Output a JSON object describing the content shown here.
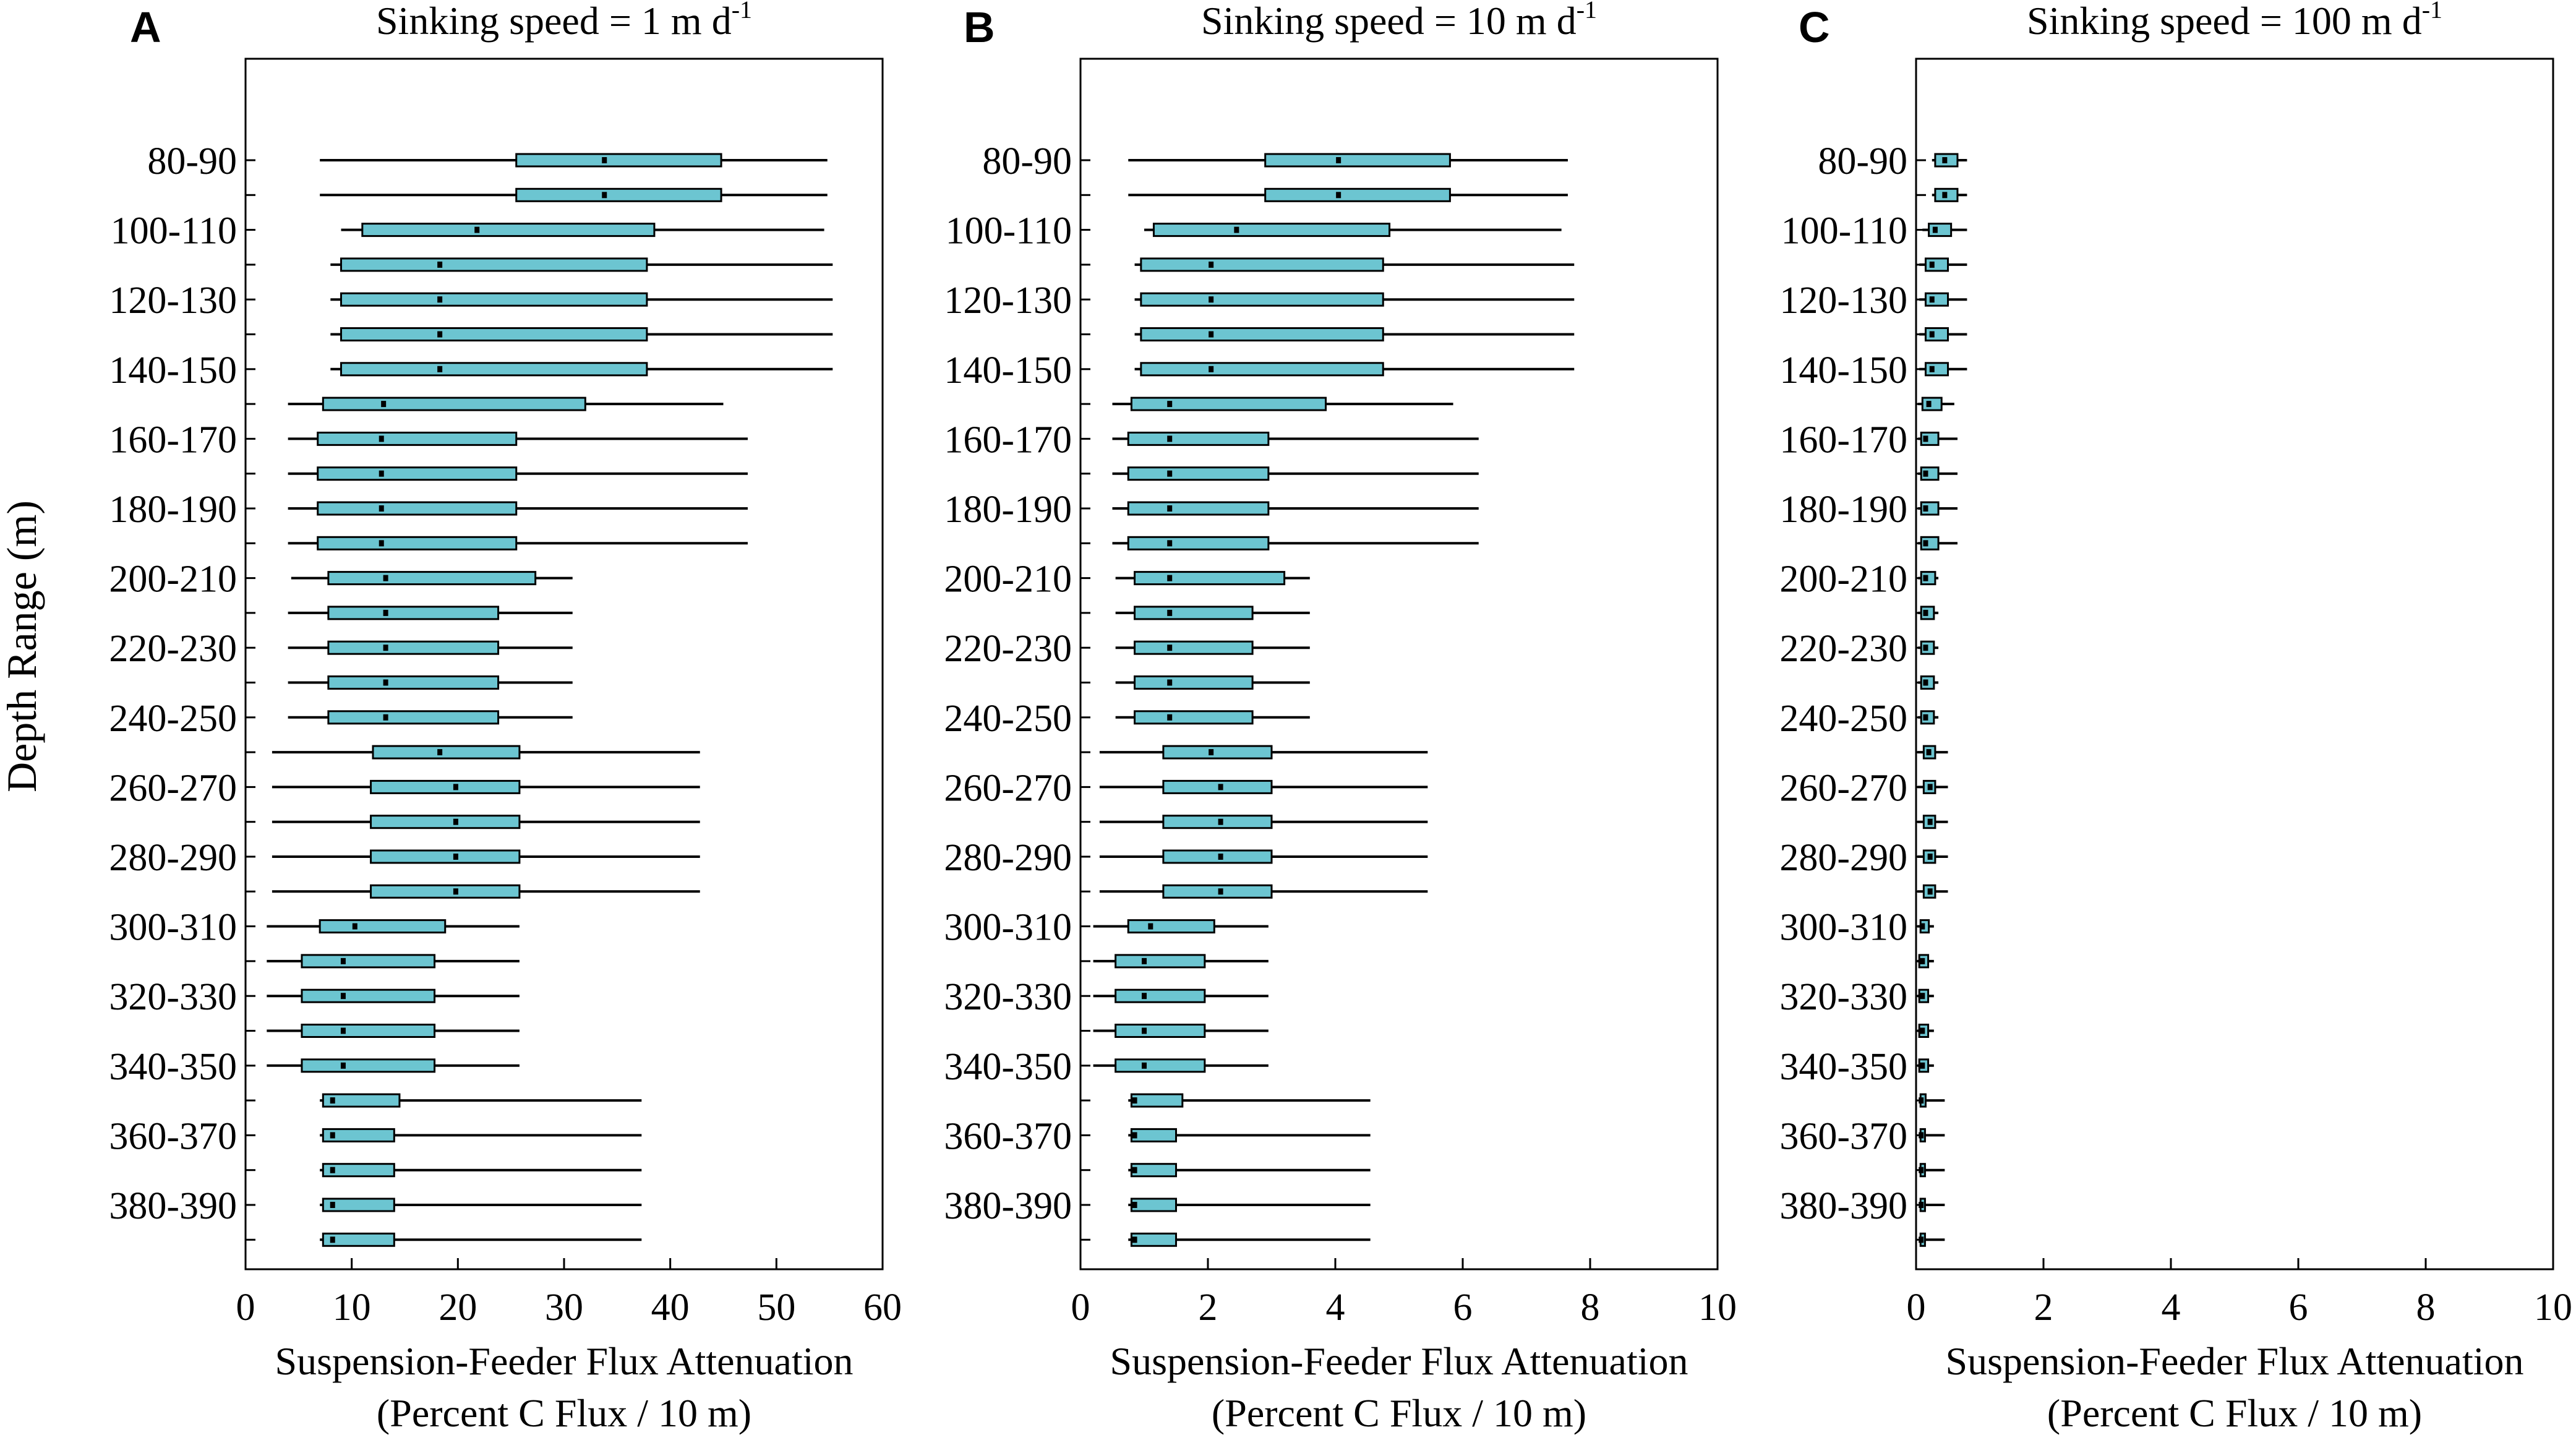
{
  "figure": {
    "y_axis_label": "Depth Range (m)"
  },
  "chart_data": [
    {
      "type": "boxplot",
      "panel_letter": "A",
      "title_main": "Sinking speed = 1 m d",
      "title_sup": "-1",
      "xlabel_line1": "Suspension-Feeder Flux Attenuation",
      "xlabel_line2": "(Percent C Flux / 10 m)",
      "ylabel": "Depth Range (m)",
      "xlim": [
        0,
        60
      ],
      "xticks": [
        "0",
        "10",
        "20",
        "30",
        "40",
        "50",
        "60"
      ],
      "box_color": "#6cc5d1",
      "categories": [
        "80-90",
        "90-100",
        "100-110",
        "110-120",
        "120-130",
        "130-140",
        "140-150",
        "150-160",
        "160-170",
        "170-180",
        "180-190",
        "190-200",
        "200-210",
        "210-220",
        "220-230",
        "230-240",
        "240-250",
        "250-260",
        "260-270",
        "270-280",
        "280-290",
        "290-300",
        "300-310",
        "310-320",
        "320-330",
        "330-340",
        "340-350",
        "350-360",
        "360-370",
        "370-380",
        "380-390",
        "390-400"
      ],
      "ytick_labels": [
        "80-90",
        "100-110",
        "120-130",
        "140-150",
        "160-170",
        "180-190",
        "200-210",
        "220-230",
        "240-250",
        "260-270",
        "280-290",
        "300-310",
        "320-330",
        "340-350",
        "360-370",
        "380-390"
      ],
      "rows": [
        {
          "min": 7.0,
          "q1": 25.5,
          "median": 33.8,
          "q3": 44.8,
          "max": 54.8
        },
        {
          "min": 7.0,
          "q1": 25.5,
          "median": 33.8,
          "q3": 44.8,
          "max": 54.8
        },
        {
          "min": 9.0,
          "q1": 11.0,
          "median": 21.8,
          "q3": 38.5,
          "max": 54.5
        },
        {
          "min": 8.0,
          "q1": 9.0,
          "median": 18.3,
          "q3": 37.8,
          "max": 55.3
        },
        {
          "min": 8.0,
          "q1": 9.0,
          "median": 18.3,
          "q3": 37.8,
          "max": 55.3
        },
        {
          "min": 8.0,
          "q1": 9.0,
          "median": 18.3,
          "q3": 37.8,
          "max": 55.3
        },
        {
          "min": 8.0,
          "q1": 9.0,
          "median": 18.3,
          "q3": 37.8,
          "max": 55.3
        },
        {
          "min": 4.0,
          "q1": 7.3,
          "median": 13.0,
          "q3": 32.0,
          "max": 45.0
        },
        {
          "min": 4.0,
          "q1": 6.8,
          "median": 12.8,
          "q3": 25.5,
          "max": 47.3
        },
        {
          "min": 4.0,
          "q1": 6.8,
          "median": 12.8,
          "q3": 25.5,
          "max": 47.3
        },
        {
          "min": 4.0,
          "q1": 6.8,
          "median": 12.8,
          "q3": 25.5,
          "max": 47.3
        },
        {
          "min": 4.0,
          "q1": 6.8,
          "median": 12.8,
          "q3": 25.5,
          "max": 47.3
        },
        {
          "min": 4.3,
          "q1": 7.8,
          "median": 13.2,
          "q3": 27.3,
          "max": 30.8
        },
        {
          "min": 4.0,
          "q1": 7.8,
          "median": 13.2,
          "q3": 23.8,
          "max": 30.8
        },
        {
          "min": 4.0,
          "q1": 7.8,
          "median": 13.2,
          "q3": 23.8,
          "max": 30.8
        },
        {
          "min": 4.0,
          "q1": 7.8,
          "median": 13.2,
          "q3": 23.8,
          "max": 30.8
        },
        {
          "min": 4.0,
          "q1": 7.8,
          "median": 13.2,
          "q3": 23.8,
          "max": 30.8
        },
        {
          "min": 2.5,
          "q1": 12.0,
          "median": 18.3,
          "q3": 25.8,
          "max": 42.8
        },
        {
          "min": 2.5,
          "q1": 11.8,
          "median": 19.8,
          "q3": 25.8,
          "max": 42.8
        },
        {
          "min": 2.5,
          "q1": 11.8,
          "median": 19.8,
          "q3": 25.8,
          "max": 42.8
        },
        {
          "min": 2.5,
          "q1": 11.8,
          "median": 19.8,
          "q3": 25.8,
          "max": 42.8
        },
        {
          "min": 2.5,
          "q1": 11.8,
          "median": 19.8,
          "q3": 25.8,
          "max": 42.8
        },
        {
          "min": 2.0,
          "q1": 7.0,
          "median": 10.3,
          "q3": 18.8,
          "max": 25.8
        },
        {
          "min": 2.0,
          "q1": 5.3,
          "median": 9.2,
          "q3": 17.8,
          "max": 25.8
        },
        {
          "min": 2.0,
          "q1": 5.3,
          "median": 9.2,
          "q3": 17.8,
          "max": 25.8
        },
        {
          "min": 2.0,
          "q1": 5.3,
          "median": 9.2,
          "q3": 17.8,
          "max": 25.8
        },
        {
          "min": 2.0,
          "q1": 5.3,
          "median": 9.2,
          "q3": 17.8,
          "max": 25.8
        },
        {
          "min": 7.0,
          "q1": 7.3,
          "median": 8.2,
          "q3": 14.5,
          "max": 37.3
        },
        {
          "min": 7.0,
          "q1": 7.3,
          "median": 8.2,
          "q3": 14.0,
          "max": 37.3
        },
        {
          "min": 7.0,
          "q1": 7.3,
          "median": 8.2,
          "q3": 14.0,
          "max": 37.3
        },
        {
          "min": 7.0,
          "q1": 7.3,
          "median": 8.2,
          "q3": 14.0,
          "max": 37.3
        },
        {
          "min": 7.0,
          "q1": 7.3,
          "median": 8.2,
          "q3": 14.0,
          "max": 37.3
        }
      ]
    },
    {
      "type": "boxplot",
      "panel_letter": "B",
      "title_main": "Sinking speed = 10 m d",
      "title_sup": "-1",
      "xlabel_line1": "Suspension-Feeder Flux Attenuation",
      "xlabel_line2": "(Percent C Flux / 10 m)",
      "xlim": [
        0,
        10
      ],
      "xticks": [
        "0",
        "2",
        "4",
        "6",
        "8",
        "10"
      ],
      "box_color": "#6cc5d1",
      "categories": [
        "80-90",
        "90-100",
        "100-110",
        "110-120",
        "120-130",
        "130-140",
        "140-150",
        "150-160",
        "160-170",
        "170-180",
        "180-190",
        "190-200",
        "200-210",
        "210-220",
        "220-230",
        "230-240",
        "240-250",
        "250-260",
        "260-270",
        "270-280",
        "280-290",
        "290-300",
        "300-310",
        "310-320",
        "320-330",
        "330-340",
        "340-350",
        "350-360",
        "360-370",
        "370-380",
        "380-390",
        "390-400"
      ],
      "ytick_labels": [
        "80-90",
        "100-110",
        "120-130",
        "140-150",
        "160-170",
        "180-190",
        "200-210",
        "220-230",
        "240-250",
        "260-270",
        "280-290",
        "300-310",
        "320-330",
        "340-350",
        "360-370",
        "380-390"
      ],
      "rows": [
        {
          "min": 0.75,
          "q1": 2.9,
          "median": 4.05,
          "q3": 5.8,
          "max": 7.65
        },
        {
          "min": 0.75,
          "q1": 2.9,
          "median": 4.05,
          "q3": 5.8,
          "max": 7.65
        },
        {
          "min": 1.0,
          "q1": 1.15,
          "median": 2.45,
          "q3": 4.85,
          "max": 7.55
        },
        {
          "min": 0.85,
          "q1": 0.95,
          "median": 2.05,
          "q3": 4.75,
          "max": 7.75
        },
        {
          "min": 0.85,
          "q1": 0.95,
          "median": 2.05,
          "q3": 4.75,
          "max": 7.75
        },
        {
          "min": 0.85,
          "q1": 0.95,
          "median": 2.05,
          "q3": 4.75,
          "max": 7.75
        },
        {
          "min": 0.85,
          "q1": 0.95,
          "median": 2.05,
          "q3": 4.75,
          "max": 7.75
        },
        {
          "min": 0.5,
          "q1": 0.8,
          "median": 1.4,
          "q3": 3.85,
          "max": 5.85
        },
        {
          "min": 0.5,
          "q1": 0.75,
          "median": 1.4,
          "q3": 2.95,
          "max": 6.25
        },
        {
          "min": 0.5,
          "q1": 0.75,
          "median": 1.4,
          "q3": 2.95,
          "max": 6.25
        },
        {
          "min": 0.5,
          "q1": 0.75,
          "median": 1.4,
          "q3": 2.95,
          "max": 6.25
        },
        {
          "min": 0.5,
          "q1": 0.75,
          "median": 1.4,
          "q3": 2.95,
          "max": 6.25
        },
        {
          "min": 0.55,
          "q1": 0.85,
          "median": 1.4,
          "q3": 3.2,
          "max": 3.6
        },
        {
          "min": 0.55,
          "q1": 0.85,
          "median": 1.4,
          "q3": 2.7,
          "max": 3.6
        },
        {
          "min": 0.55,
          "q1": 0.85,
          "median": 1.4,
          "q3": 2.7,
          "max": 3.6
        },
        {
          "min": 0.55,
          "q1": 0.85,
          "median": 1.4,
          "q3": 2.7,
          "max": 3.6
        },
        {
          "min": 0.55,
          "q1": 0.85,
          "median": 1.4,
          "q3": 2.7,
          "max": 3.6
        },
        {
          "min": 0.3,
          "q1": 1.3,
          "median": 2.05,
          "q3": 3.0,
          "max": 5.45
        },
        {
          "min": 0.3,
          "q1": 1.3,
          "median": 2.2,
          "q3": 3.0,
          "max": 5.45
        },
        {
          "min": 0.3,
          "q1": 1.3,
          "median": 2.2,
          "q3": 3.0,
          "max": 5.45
        },
        {
          "min": 0.3,
          "q1": 1.3,
          "median": 2.2,
          "q3": 3.0,
          "max": 5.45
        },
        {
          "min": 0.3,
          "q1": 1.3,
          "median": 2.2,
          "q3": 3.0,
          "max": 5.45
        },
        {
          "min": 0.2,
          "q1": 0.75,
          "median": 1.1,
          "q3": 2.1,
          "max": 2.95
        },
        {
          "min": 0.2,
          "q1": 0.55,
          "median": 1.0,
          "q3": 1.95,
          "max": 2.95
        },
        {
          "min": 0.2,
          "q1": 0.55,
          "median": 1.0,
          "q3": 1.95,
          "max": 2.95
        },
        {
          "min": 0.2,
          "q1": 0.55,
          "median": 1.0,
          "q3": 1.95,
          "max": 2.95
        },
        {
          "min": 0.2,
          "q1": 0.55,
          "median": 1.0,
          "q3": 1.95,
          "max": 2.95
        },
        {
          "min": 0.75,
          "q1": 0.8,
          "median": 0.85,
          "q3": 1.6,
          "max": 4.55
        },
        {
          "min": 0.75,
          "q1": 0.8,
          "median": 0.85,
          "q3": 1.5,
          "max": 4.55
        },
        {
          "min": 0.75,
          "q1": 0.8,
          "median": 0.85,
          "q3": 1.5,
          "max": 4.55
        },
        {
          "min": 0.75,
          "q1": 0.8,
          "median": 0.85,
          "q3": 1.5,
          "max": 4.55
        },
        {
          "min": 0.75,
          "q1": 0.8,
          "median": 0.85,
          "q3": 1.5,
          "max": 4.55
        }
      ]
    },
    {
      "type": "boxplot",
      "panel_letter": "C",
      "title_main": "Sinking speed = 100 m d",
      "title_sup": "-1",
      "xlabel_line1": "Suspension-Feeder Flux Attenuation",
      "xlabel_line2": "(Percent C Flux / 10 m)",
      "xlim": [
        0,
        10
      ],
      "xticks": [
        "0",
        "2",
        "4",
        "6",
        "8",
        "10"
      ],
      "box_color": "#6cc5d1",
      "categories": [
        "80-90",
        "90-100",
        "100-110",
        "110-120",
        "120-130",
        "130-140",
        "140-150",
        "150-160",
        "160-170",
        "170-180",
        "180-190",
        "190-200",
        "200-210",
        "210-220",
        "220-230",
        "230-240",
        "240-250",
        "250-260",
        "260-270",
        "270-280",
        "280-290",
        "290-300",
        "300-310",
        "310-320",
        "320-330",
        "330-340",
        "340-350",
        "350-360",
        "360-370",
        "370-380",
        "380-390",
        "390-400"
      ],
      "ytick_labels": [
        "80-90",
        "100-110",
        "120-130",
        "140-150",
        "160-170",
        "180-190",
        "200-210",
        "220-230",
        "240-250",
        "260-270",
        "280-290",
        "300-310",
        "320-330",
        "340-350",
        "360-370",
        "380-390"
      ],
      "rows": [
        {
          "min": 0.25,
          "q1": 0.3,
          "median": 0.45,
          "q3": 0.65,
          "max": 0.8
        },
        {
          "min": 0.25,
          "q1": 0.3,
          "median": 0.45,
          "q3": 0.65,
          "max": 0.8
        },
        {
          "min": 0.1,
          "q1": 0.2,
          "median": 0.3,
          "q3": 0.55,
          "max": 0.8
        },
        {
          "min": 0.05,
          "q1": 0.15,
          "median": 0.25,
          "q3": 0.5,
          "max": 0.8
        },
        {
          "min": 0.05,
          "q1": 0.15,
          "median": 0.25,
          "q3": 0.5,
          "max": 0.8
        },
        {
          "min": 0.05,
          "q1": 0.15,
          "median": 0.25,
          "q3": 0.5,
          "max": 0.8
        },
        {
          "min": 0.05,
          "q1": 0.15,
          "median": 0.25,
          "q3": 0.5,
          "max": 0.8
        },
        {
          "min": 0.03,
          "q1": 0.1,
          "median": 0.2,
          "q3": 0.4,
          "max": 0.6
        },
        {
          "min": 0.03,
          "q1": 0.08,
          "median": 0.15,
          "q3": 0.35,
          "max": 0.65
        },
        {
          "min": 0.03,
          "q1": 0.08,
          "median": 0.15,
          "q3": 0.35,
          "max": 0.65
        },
        {
          "min": 0.03,
          "q1": 0.08,
          "median": 0.15,
          "q3": 0.35,
          "max": 0.65
        },
        {
          "min": 0.03,
          "q1": 0.08,
          "median": 0.15,
          "q3": 0.35,
          "max": 0.65
        },
        {
          "min": 0.03,
          "q1": 0.08,
          "median": 0.15,
          "q3": 0.3,
          "max": 0.35
        },
        {
          "min": 0.03,
          "q1": 0.08,
          "median": 0.15,
          "q3": 0.28,
          "max": 0.35
        },
        {
          "min": 0.03,
          "q1": 0.08,
          "median": 0.15,
          "q3": 0.28,
          "max": 0.35
        },
        {
          "min": 0.03,
          "q1": 0.08,
          "median": 0.15,
          "q3": 0.28,
          "max": 0.35
        },
        {
          "min": 0.03,
          "q1": 0.08,
          "median": 0.15,
          "q3": 0.28,
          "max": 0.35
        },
        {
          "min": 0.02,
          "q1": 0.12,
          "median": 0.2,
          "q3": 0.3,
          "max": 0.5
        },
        {
          "min": 0.02,
          "q1": 0.12,
          "median": 0.22,
          "q3": 0.3,
          "max": 0.5
        },
        {
          "min": 0.02,
          "q1": 0.12,
          "median": 0.22,
          "q3": 0.3,
          "max": 0.5
        },
        {
          "min": 0.02,
          "q1": 0.12,
          "median": 0.22,
          "q3": 0.3,
          "max": 0.5
        },
        {
          "min": 0.02,
          "q1": 0.12,
          "median": 0.22,
          "q3": 0.3,
          "max": 0.5
        },
        {
          "min": 0.02,
          "q1": 0.07,
          "median": 0.1,
          "q3": 0.2,
          "max": 0.28
        },
        {
          "min": 0.02,
          "q1": 0.05,
          "median": 0.1,
          "q3": 0.19,
          "max": 0.28
        },
        {
          "min": 0.02,
          "q1": 0.05,
          "median": 0.1,
          "q3": 0.19,
          "max": 0.28
        },
        {
          "min": 0.02,
          "q1": 0.05,
          "median": 0.1,
          "q3": 0.19,
          "max": 0.28
        },
        {
          "min": 0.02,
          "q1": 0.05,
          "median": 0.1,
          "q3": 0.19,
          "max": 0.28
        },
        {
          "min": 0.06,
          "q1": 0.07,
          "median": 0.08,
          "q3": 0.15,
          "max": 0.45
        },
        {
          "min": 0.06,
          "q1": 0.07,
          "median": 0.08,
          "q3": 0.14,
          "max": 0.45
        },
        {
          "min": 0.06,
          "q1": 0.07,
          "median": 0.08,
          "q3": 0.14,
          "max": 0.45
        },
        {
          "min": 0.06,
          "q1": 0.07,
          "median": 0.08,
          "q3": 0.14,
          "max": 0.45
        },
        {
          "min": 0.06,
          "q1": 0.07,
          "median": 0.08,
          "q3": 0.14,
          "max": 0.45
        }
      ]
    }
  ]
}
